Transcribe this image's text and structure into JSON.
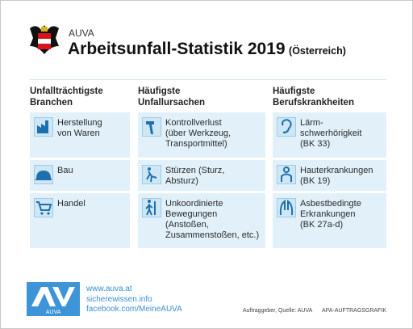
{
  "header": {
    "org": "AUVA",
    "title": "Arbeitsunfall-Statistik 2019",
    "subtitle": "(Österreich)"
  },
  "columns": [
    {
      "heading": [
        "Unfallträchtigste",
        "Branchen"
      ],
      "items": [
        {
          "lines": [
            "Herstellung",
            "von Waren"
          ]
        },
        {
          "lines": [
            "Bau"
          ]
        },
        {
          "lines": [
            "Handel"
          ]
        }
      ]
    },
    {
      "heading": [
        "Häufigste",
        "Unfallursachen"
      ],
      "items": [
        {
          "lines": [
            "Kontrollverlust",
            "(über Werkzeug,",
            "Transportmittel)"
          ]
        },
        {
          "lines": [
            "Stürzen (Sturz,",
            "Absturz)"
          ]
        },
        {
          "lines": [
            "Unkoordinierte",
            "Bewegungen",
            "(Anstoßen,",
            "Zusammenstoßen, etc.)"
          ]
        }
      ]
    },
    {
      "heading": [
        "Häufigste",
        "Berufskrankheiten"
      ],
      "items": [
        {
          "lines": [
            "Lärm-",
            "schwerhörigkeit",
            "(BK 33)"
          ]
        },
        {
          "lines": [
            "Hauterkrankungen",
            "(BK 19)"
          ]
        },
        {
          "lines": [
            "Asbestbedingte",
            "Erkrankungen",
            "(BK 27a-d)"
          ]
        }
      ]
    }
  ],
  "footer": {
    "logo": "AUVA",
    "links": [
      "www.auva.at",
      "sicherewissen.info",
      "facebook.com/MeineAUVA"
    ],
    "source": "Auftraggeber, Quelle: AUVA",
    "credit": "APA-AUFTRAGSGRAFIK"
  }
}
